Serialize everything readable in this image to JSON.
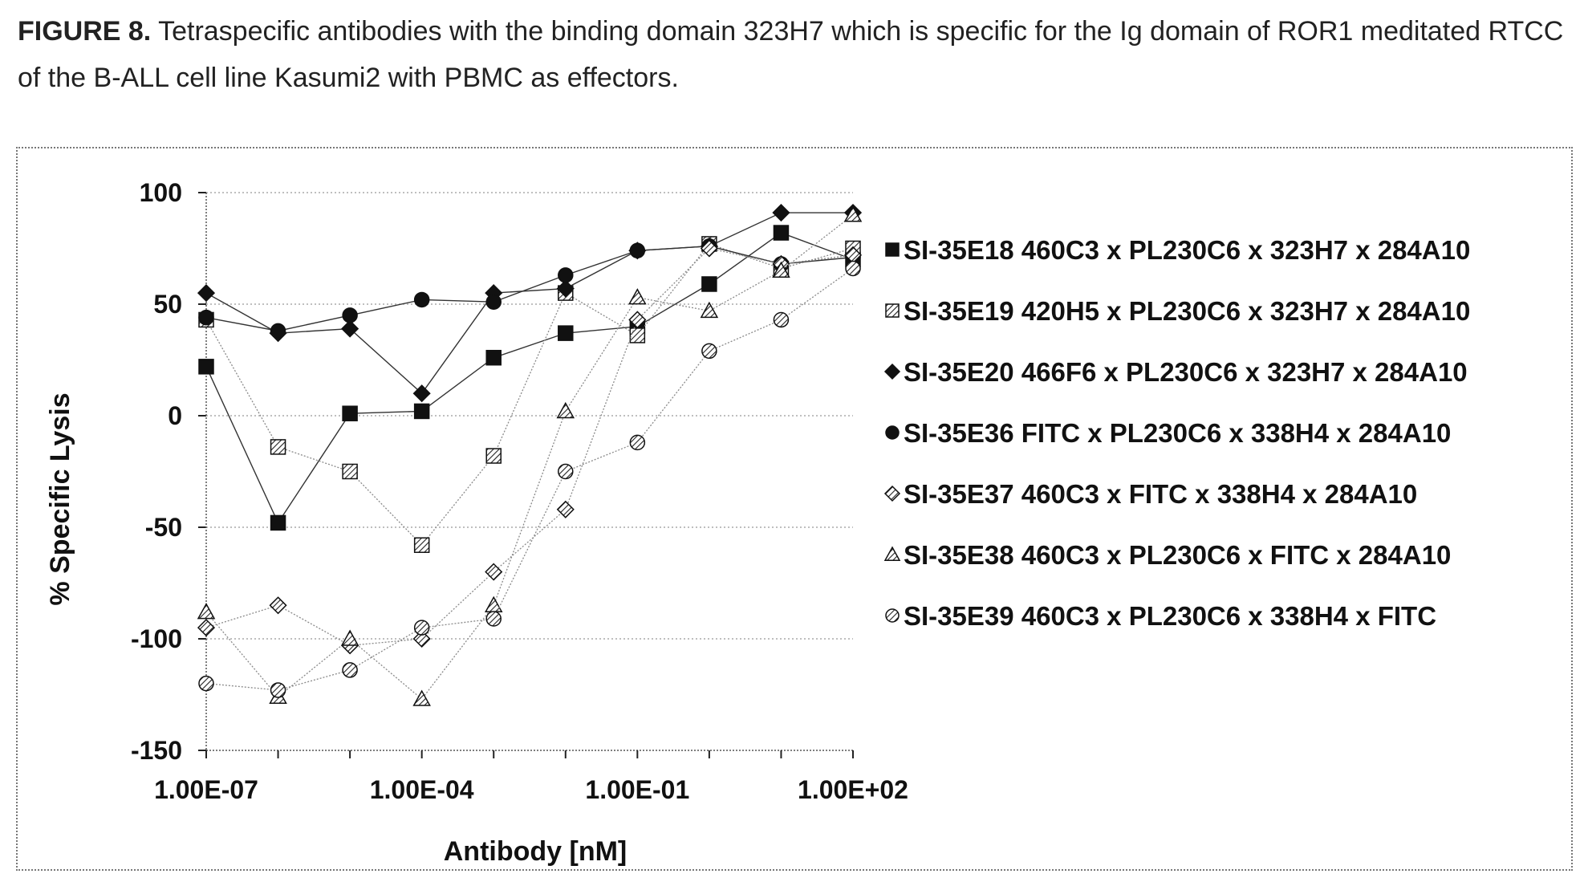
{
  "caption": {
    "label": "FIGURE 8.",
    "text": " Tetraspecific antibodies with the binding domain 323H7 which is specific for the Ig domain of ROR1 meditated RTCC of the B-ALL cell line Kasumi2 with PBMC as effectors."
  },
  "chart_data": {
    "type": "line",
    "title": "",
    "xlabel": "Antibody [nM]",
    "ylabel": "% Specific Lysis",
    "x_scale": "log10",
    "xlim": [
      1e-07,
      100
    ],
    "ylim": [
      -150,
      100
    ],
    "x_ticks": [
      "1.00E-07",
      "1.00E-04",
      "1.00E-01",
      "1.00E+02"
    ],
    "y_ticks": [
      "100",
      "50",
      "0",
      "-50",
      "-100",
      "-150"
    ],
    "grid": "horizontal dotted",
    "legend_position": "right",
    "x": [
      1e-07,
      1e-06,
      1e-05,
      0.0001,
      0.001,
      0.01,
      0.1,
      1,
      10,
      100
    ],
    "series": [
      {
        "name": "SI-35E18 460C3 x PL230C6 x 323H7 x 284A10",
        "marker": "square-filled",
        "values": [
          22,
          -48,
          1,
          2,
          26,
          37,
          40,
          59,
          82,
          70
        ]
      },
      {
        "name": "SI-35E19 420H5 x PL230C6 x 323H7 x 284A10",
        "marker": "square-hatched",
        "values": [
          43,
          -14,
          -25,
          -58,
          -18,
          55,
          36,
          77,
          66,
          75
        ]
      },
      {
        "name": "SI-35E20 466F6 x PL230C6 x 323H7 x 284A10",
        "marker": "diamond-filled",
        "values": [
          55,
          37,
          39,
          10,
          55,
          57,
          74,
          76,
          91,
          91
        ]
      },
      {
        "name": "SI-35E36 FITC x PL230C6 x 338H4 x 284A10",
        "marker": "circle-filled",
        "values": [
          44,
          38,
          45,
          52,
          51,
          63,
          74,
          76,
          68,
          71
        ]
      },
      {
        "name": "SI-35E37 460C3 x FITC x 338H4 x 284A10",
        "marker": "diamond-hatched",
        "values": [
          -95,
          -85,
          -103,
          -100,
          -70,
          -42,
          43,
          75,
          68,
          72
        ]
      },
      {
        "name": "SI-35E38 460C3 x PL230C6 x FITC x 284A10",
        "marker": "triangle-hatched",
        "values": [
          -88,
          -126,
          -100,
          -127,
          -85,
          2,
          53,
          47,
          65,
          90
        ]
      },
      {
        "name": "SI-35E39 460C3 x PL230C6 x 338H4 x FITC",
        "marker": "circle-hatched",
        "values": [
          -120,
          -123,
          -114,
          -95,
          -91,
          -25,
          -12,
          29,
          43,
          66
        ]
      }
    ]
  }
}
